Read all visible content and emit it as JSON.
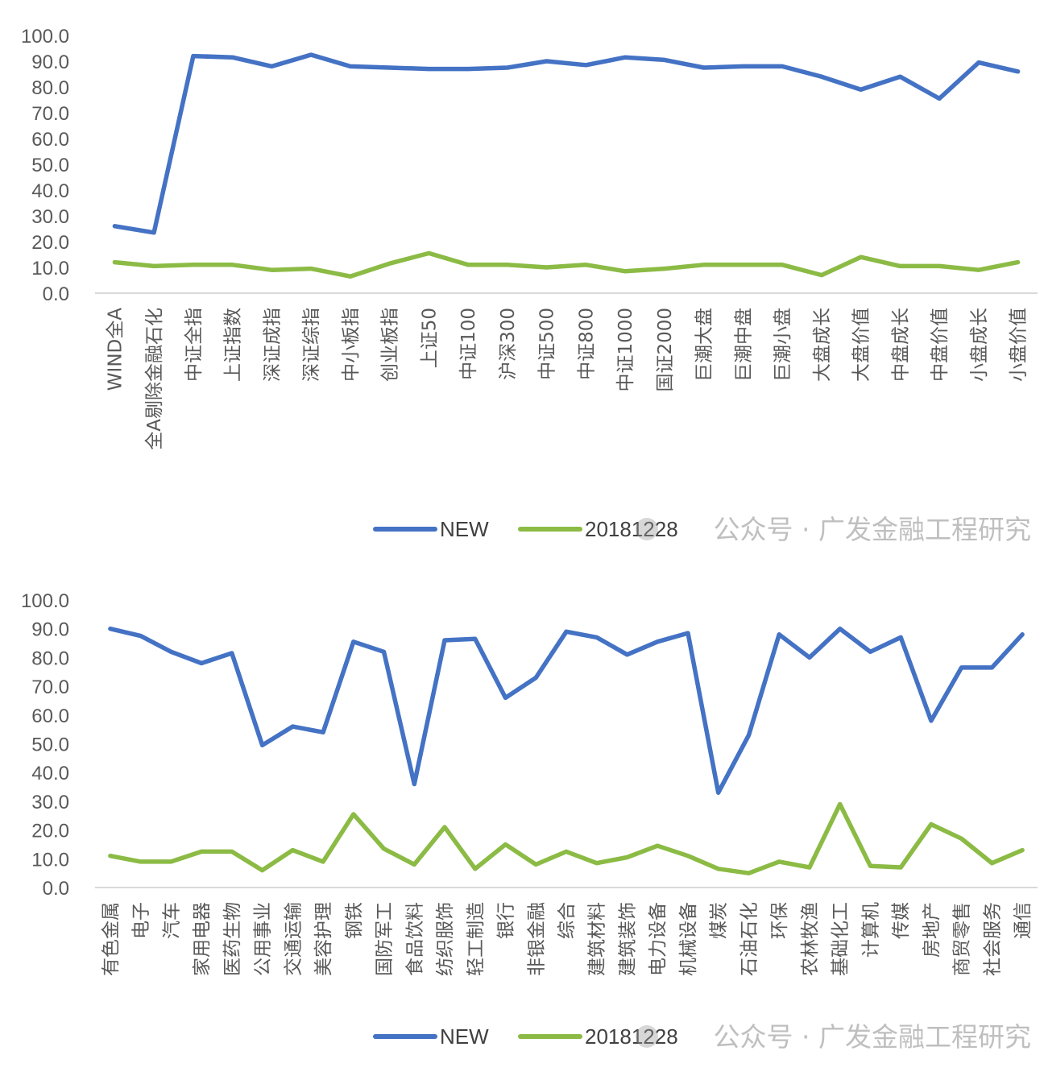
{
  "watermark": "公众号 · 广发金融工程研究",
  "colors": {
    "new": "#4472C4",
    "old": "#8CBB45",
    "axis": "#d9d9d9",
    "text": "#595959"
  },
  "chart_data": [
    {
      "type": "line",
      "ylim": [
        0,
        100
      ],
      "yticks": [
        "0.0",
        "10.0",
        "20.0",
        "30.0",
        "40.0",
        "50.0",
        "60.0",
        "70.0",
        "80.0",
        "90.0",
        "100.0"
      ],
      "legend_position": "bottom",
      "categories": [
        "WIND全A",
        "全A剔除金融石化",
        "中证全指",
        "上证指数",
        "深证成指",
        "深证综指",
        "中小板指",
        "创业板指",
        "上证50",
        "中证100",
        "沪深300",
        "中证500",
        "中证800",
        "中证1000",
        "国证2000",
        "巨潮大盘",
        "巨潮中盘",
        "巨潮小盘",
        "大盘成长",
        "大盘价值",
        "中盘成长",
        "中盘价值",
        "小盘成长",
        "小盘价值"
      ],
      "series": [
        {
          "name": "NEW",
          "color": "#4472C4",
          "values": [
            26,
            23.5,
            92,
            91.5,
            88,
            92.5,
            88,
            87.5,
            87,
            87,
            87.5,
            90,
            88.5,
            91.5,
            90.5,
            87.5,
            88,
            88,
            84,
            79,
            84,
            75.5,
            89.5,
            86
          ]
        },
        {
          "name": "20181228",
          "color": "#8CBB45",
          "values": [
            12,
            10.5,
            11,
            11,
            9,
            9.5,
            6.5,
            11.5,
            15.5,
            11,
            11,
            10,
            11,
            8.5,
            9.5,
            11,
            11,
            11,
            7,
            14,
            10.5,
            10.5,
            9,
            12
          ]
        }
      ]
    },
    {
      "type": "line",
      "ylim": [
        0,
        100
      ],
      "yticks": [
        "0.0",
        "10.0",
        "20.0",
        "30.0",
        "40.0",
        "50.0",
        "60.0",
        "70.0",
        "80.0",
        "90.0",
        "100.0"
      ],
      "legend_position": "bottom",
      "categories": [
        "有色金属",
        "电子",
        "汽车",
        "家用电器",
        "医药生物",
        "公用事业",
        "交通运输",
        "美容护理",
        "钢铁",
        "国防军工",
        "食品饮料",
        "纺织服饰",
        "轻工制造",
        "银行",
        "非银金融",
        "综合",
        "建筑材料",
        "建筑装饰",
        "电力设备",
        "机械设备",
        "煤炭",
        "石油石化",
        "环保",
        "农林牧渔",
        "基础化工",
        "计算机",
        "传媒",
        "房地产",
        "商贸零售",
        "社会服务",
        "通信"
      ],
      "series": [
        {
          "name": "NEW",
          "color": "#4472C4",
          "values": [
            90,
            87.5,
            82,
            78,
            81.5,
            49.5,
            56,
            54,
            85.5,
            82,
            36,
            86,
            86.5,
            66,
            73,
            89,
            87,
            81,
            85.5,
            88.5,
            33,
            53,
            88,
            80,
            90,
            82,
            87,
            58,
            76.5,
            76.5,
            88
          ]
        },
        {
          "name": "20181228",
          "color": "#8CBB45",
          "values": [
            11,
            9,
            9,
            12.5,
            12.5,
            6,
            13,
            9,
            25.5,
            13.5,
            8,
            21,
            6.5,
            15,
            8,
            12.5,
            8.5,
            10.5,
            14.5,
            11,
            6.5,
            5,
            9,
            7,
            29,
            7.5,
            7,
            22,
            17,
            8.5,
            13
          ]
        }
      ]
    }
  ]
}
